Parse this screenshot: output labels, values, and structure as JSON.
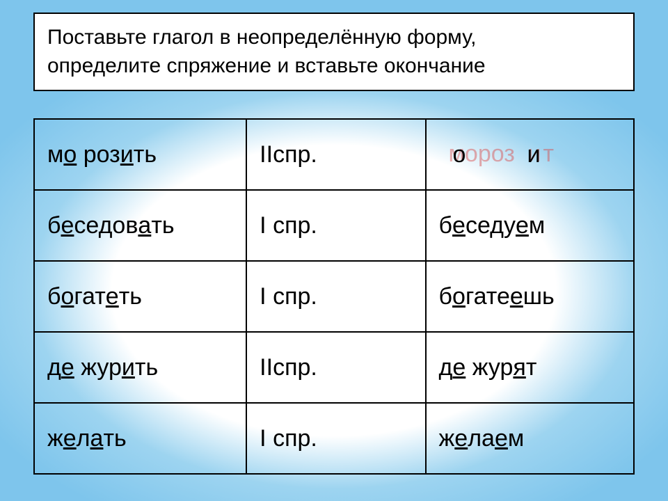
{
  "header": {
    "line1": "Поставьте глагол в неопределённую форму,",
    "line2": "определите спряжение и вставьте окончание"
  },
  "table": {
    "background_color": "#ffffff",
    "border_color": "#000000",
    "font_size": 34,
    "underline_color": "#000000",
    "rows": [
      {
        "col1": {
          "pre": "м",
          "u1": "о",
          "mid": " роз",
          "u2": "и",
          "post": "ть"
        },
        "col2": "IIспр.",
        "col3": {
          "mode": "ghost",
          "black_left": "о",
          "black_right": "и",
          "ghost_text": "мороз  т",
          "ghost_red": "и"
        }
      },
      {
        "col1": {
          "pre": "б",
          "u1": "е",
          "mid": "седов",
          "u2": "а",
          "post": "ть"
        },
        "col2": "I спр.",
        "col3": {
          "mode": "std",
          "pre": "б",
          "u1": "е",
          "mid": "седу",
          "u2": "е",
          "post": "м"
        }
      },
      {
        "col1": {
          "pre": "б",
          "u1": "о",
          "mid": "гат",
          "u2": "е",
          "post": "ть"
        },
        "col2": "I спр.",
        "col3": {
          "mode": "std",
          "pre": "б",
          "u1": "о",
          "mid": "гате",
          "u2": "е",
          "post": "шь"
        }
      },
      {
        "col1": {
          "pre": "д",
          "u1": "е",
          "mid": " жур",
          "u2": "и",
          "post": "ть"
        },
        "col2": "IIспр.",
        "col3": {
          "mode": "std",
          "pre": "д",
          "u1": "е",
          "mid": " жур",
          "u2": "я",
          "post": "т"
        }
      },
      {
        "col1": {
          "pre": "ж",
          "u1": "е",
          "mid": "л",
          "u2": "а",
          "post": "ть"
        },
        "col2": "I спр.",
        "col3": {
          "mode": "std",
          "pre": "ж",
          "u1": "е",
          "mid": "ла",
          "u2": "е",
          "post": "м"
        }
      }
    ]
  },
  "styling": {
    "header_font_size": 30,
    "header_bg": "#ffffff",
    "header_border": "#000000",
    "page_bg_inner": "#ffffff",
    "page_bg_outer": "#7ec5ec",
    "ghost_color": "#d94a4a",
    "ghost_opacity": 0.45
  }
}
